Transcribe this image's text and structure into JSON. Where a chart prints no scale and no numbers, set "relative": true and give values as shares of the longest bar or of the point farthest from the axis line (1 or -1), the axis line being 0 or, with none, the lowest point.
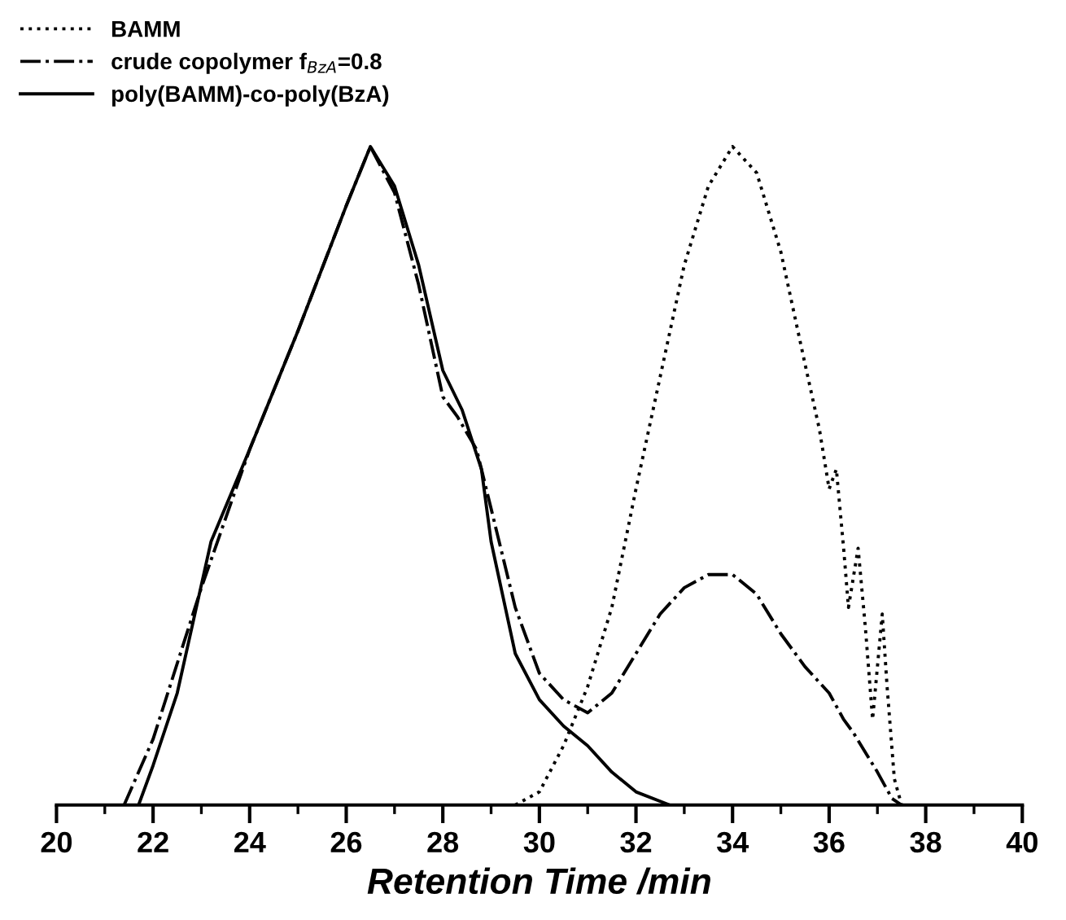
{
  "chart_data": {
    "type": "line",
    "relative": true,
    "xlabel": "Retention Time /min",
    "xlim": [
      20,
      40
    ],
    "xticks": [
      20,
      22,
      24,
      26,
      28,
      30,
      32,
      34,
      36,
      38,
      40
    ],
    "legend": "top left",
    "grid": false,
    "marker": "none",
    "series": [
      {
        "name": "BAMM",
        "color": "#000000",
        "line_style": "dotted",
        "x": [
          29.5,
          30,
          30.5,
          31,
          31.5,
          32,
          32.5,
          33,
          33.5,
          34,
          34.5,
          35,
          35.5,
          35.8,
          36,
          36.15,
          36.3,
          36.4,
          36.6,
          36.75,
          36.9,
          37,
          37.1,
          37.2,
          37.35,
          37.5
        ],
        "values": [
          0,
          0.02,
          0.09,
          0.18,
          0.3,
          0.48,
          0.65,
          0.82,
          0.94,
          1,
          0.96,
          0.84,
          0.67,
          0.57,
          0.48,
          0.51,
          0.39,
          0.3,
          0.39,
          0.27,
          0.13,
          0.21,
          0.29,
          0.18,
          0.04,
          0
        ]
      },
      {
        "name": "crude copolymer f$_{BzA}$=0.8",
        "color": "#000000",
        "line_style": "dashdot",
        "x": [
          21.4,
          22,
          23,
          24,
          25,
          26,
          26.5,
          27,
          27.5,
          28,
          28.3,
          28.7,
          29,
          29.5,
          30,
          30.5,
          31,
          31.5,
          32,
          32.5,
          33,
          33.5,
          34,
          34.5,
          35,
          35.5,
          36,
          36.3,
          36.5,
          37,
          37.3,
          37.5
        ],
        "values": [
          0,
          0.1,
          0.33,
          0.54,
          0.72,
          0.91,
          1,
          0.93,
          0.79,
          0.62,
          0.59,
          0.54,
          0.45,
          0.3,
          0.2,
          0.16,
          0.14,
          0.17,
          0.23,
          0.29,
          0.33,
          0.35,
          0.35,
          0.32,
          0.26,
          0.21,
          0.17,
          0.13,
          0.11,
          0.05,
          0.01,
          0
        ]
      },
      {
        "name": "poly(BAMM)-co-poly(BzA)",
        "color": "#000000",
        "line_style": "solid",
        "x": [
          21.7,
          22,
          22.5,
          23.2,
          24,
          25,
          26,
          26.5,
          27,
          27.5,
          28,
          28.4,
          28.8,
          29,
          29.5,
          30,
          30.5,
          31,
          31.5,
          32,
          32.7
        ],
        "values": [
          0,
          0.06,
          0.17,
          0.4,
          0.54,
          0.72,
          0.91,
          1,
          0.94,
          0.82,
          0.66,
          0.6,
          0.51,
          0.4,
          0.23,
          0.16,
          0.12,
          0.09,
          0.05,
          0.02,
          0
        ]
      }
    ]
  }
}
